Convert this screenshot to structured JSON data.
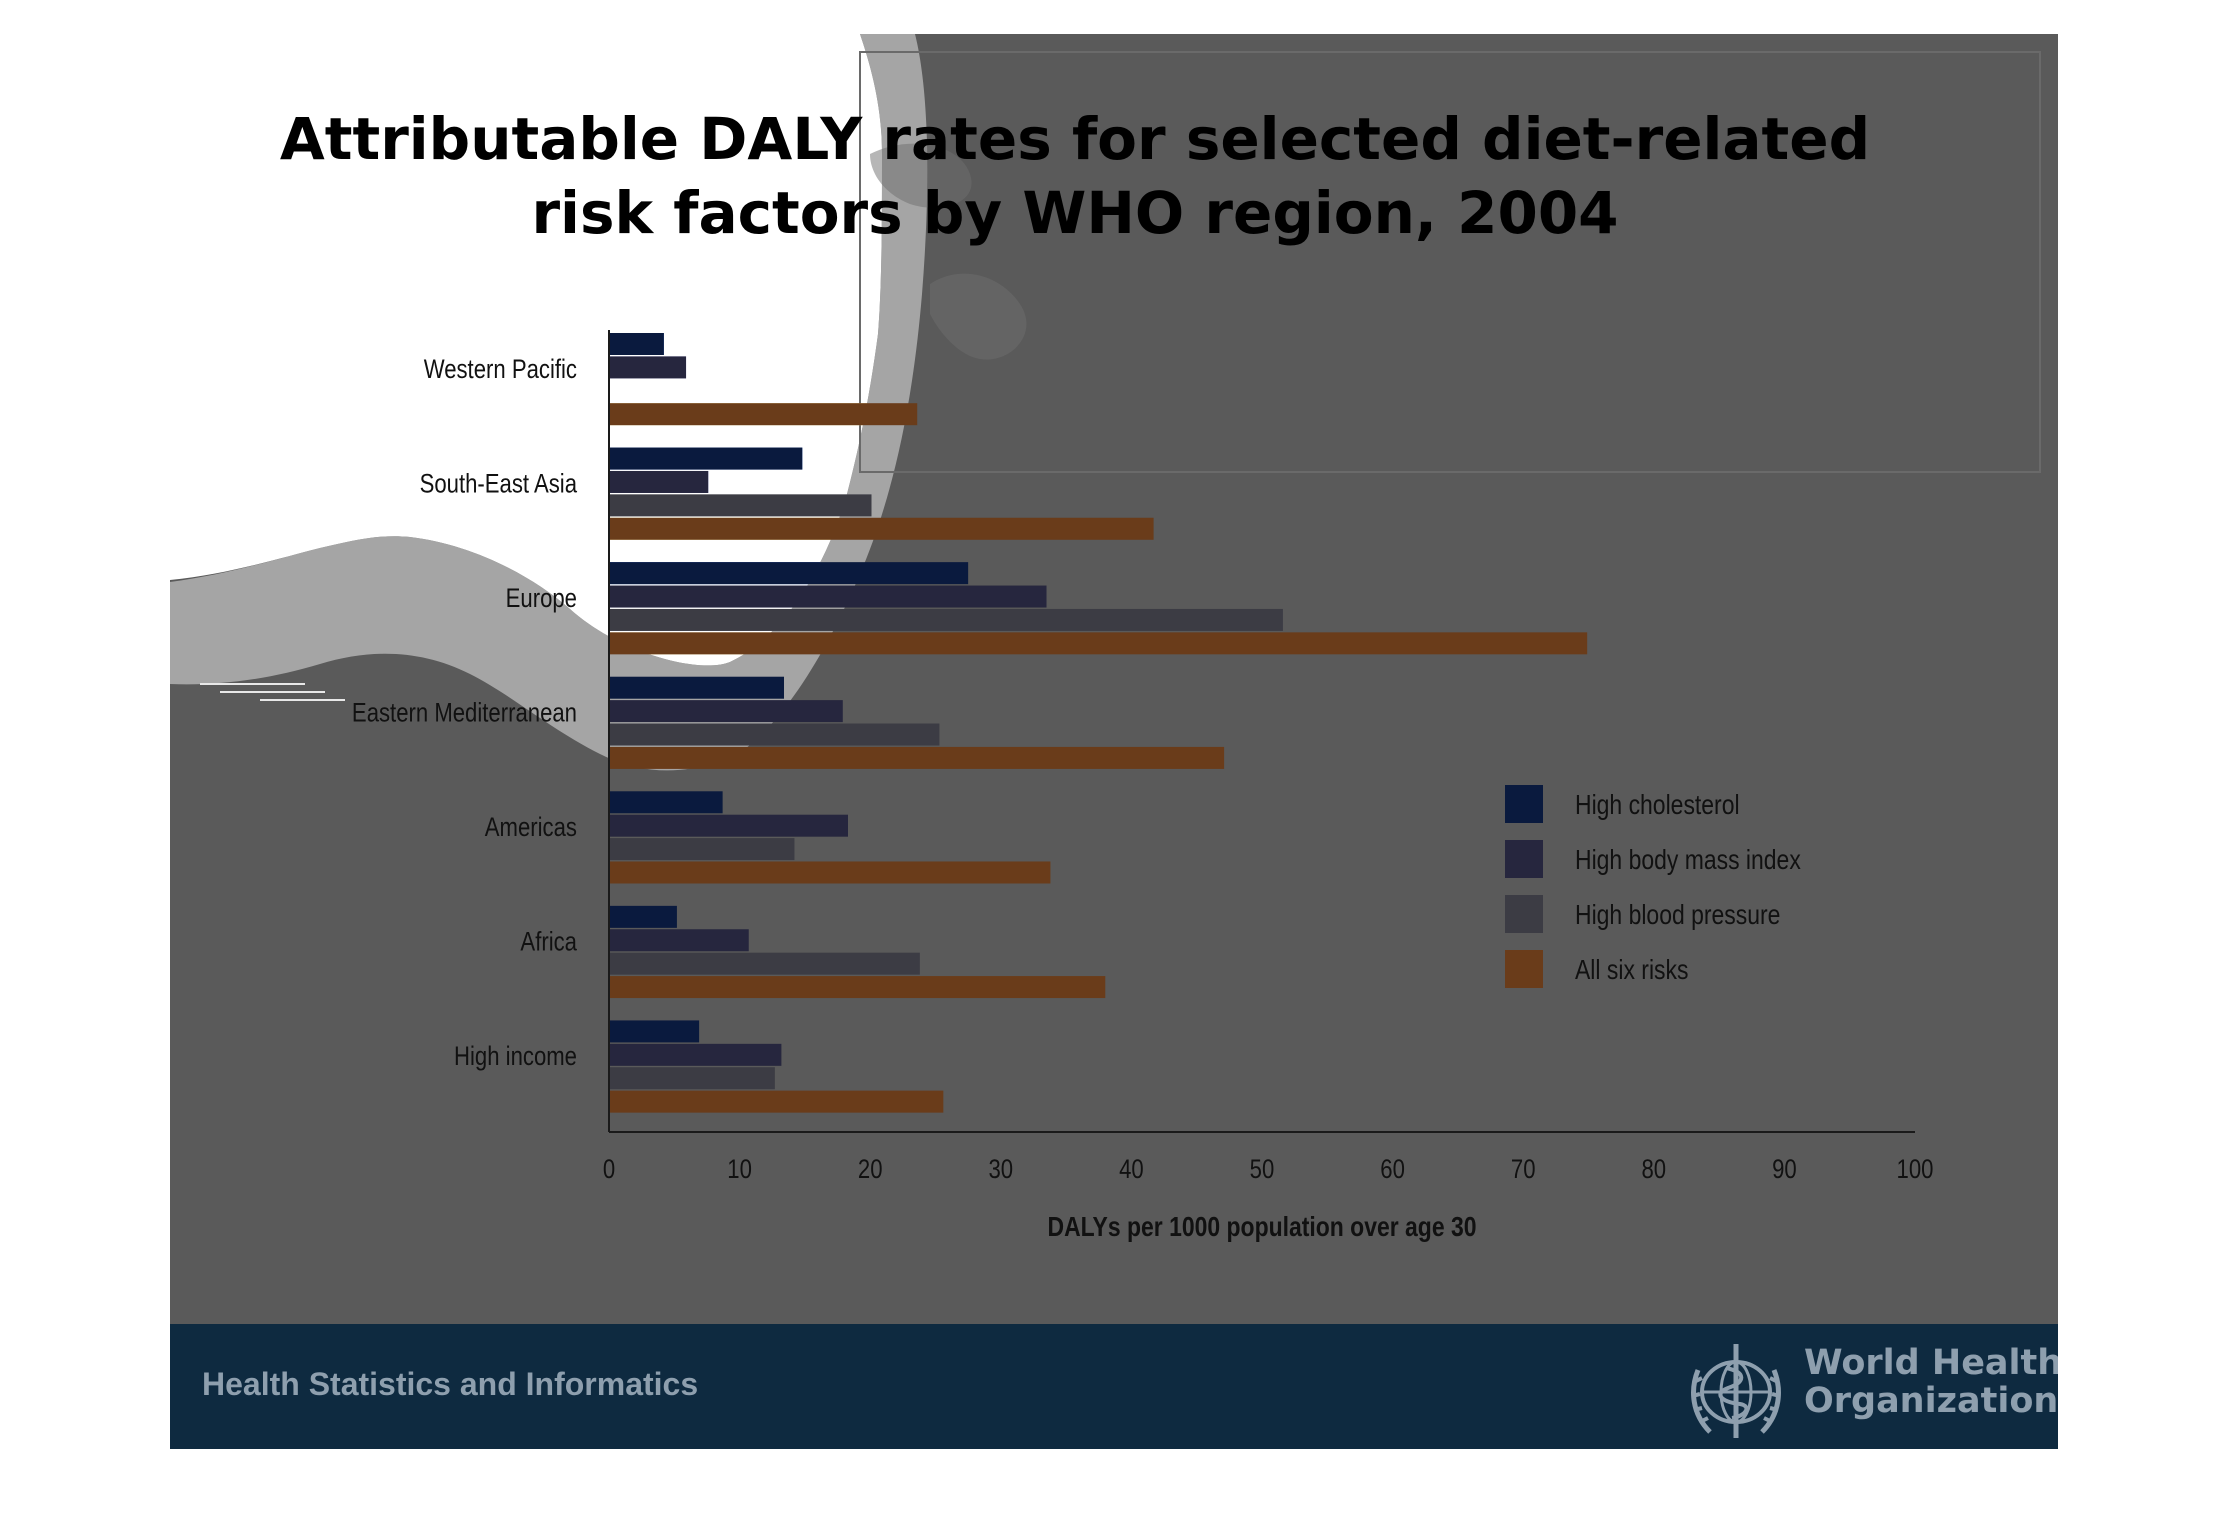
{
  "slide": {
    "title_line1": "Attributable DALY rates for selected diet-related",
    "title_line2": "risk factors by WHO region, 2004",
    "footer_text": "Health Statistics and Informatics",
    "org_name_line1": "World Health",
    "org_name_line2": "Organization",
    "logo_icon": "who-emblem-icon"
  },
  "colors": {
    "slide_background": "#5a5a5a",
    "footer_background": "#0e2a40",
    "footer_text": "#8e9fae",
    "light_overlay": "#ffffff"
  },
  "chart_data": {
    "type": "bar",
    "orientation": "horizontal",
    "title": "",
    "xlabel": "DALYs per 1000 population over age 30",
    "ylabel": "",
    "xlim": [
      0,
      100
    ],
    "xticks": [
      0,
      10,
      20,
      30,
      40,
      50,
      60,
      70,
      80,
      90,
      100
    ],
    "grid": false,
    "legend_position": "right",
    "categories": [
      "Western Pacific",
      "South-East Asia",
      "Europe",
      "Eastern Mediterranean",
      "Americas",
      "Africa",
      "High income"
    ],
    "series": [
      {
        "name": "High cholesterol",
        "color": "#0a1a3e",
        "light_color": "#1a4fc8",
        "values": [
          4.2,
          14.8,
          27.5,
          13.4,
          8.7,
          5.2,
          6.9
        ]
      },
      {
        "name": "High body mass index",
        "color": "#26263e",
        "light_color": "#9d9ef6",
        "values": [
          5.9,
          7.6,
          33.5,
          17.9,
          18.3,
          10.7,
          13.2
        ]
      },
      {
        "name": "High blood pressure",
        "color": "#3c3c44",
        "light_color": "#b4b4bc",
        "values": [
          0,
          20.1,
          51.6,
          25.3,
          14.2,
          23.8,
          12.7
        ]
      },
      {
        "name": "All six risks",
        "color": "#6a3c1a",
        "light_color": "#fde98c",
        "values": [
          23.6,
          41.7,
          74.9,
          47.1,
          33.8,
          38.0,
          25.6
        ]
      }
    ]
  }
}
